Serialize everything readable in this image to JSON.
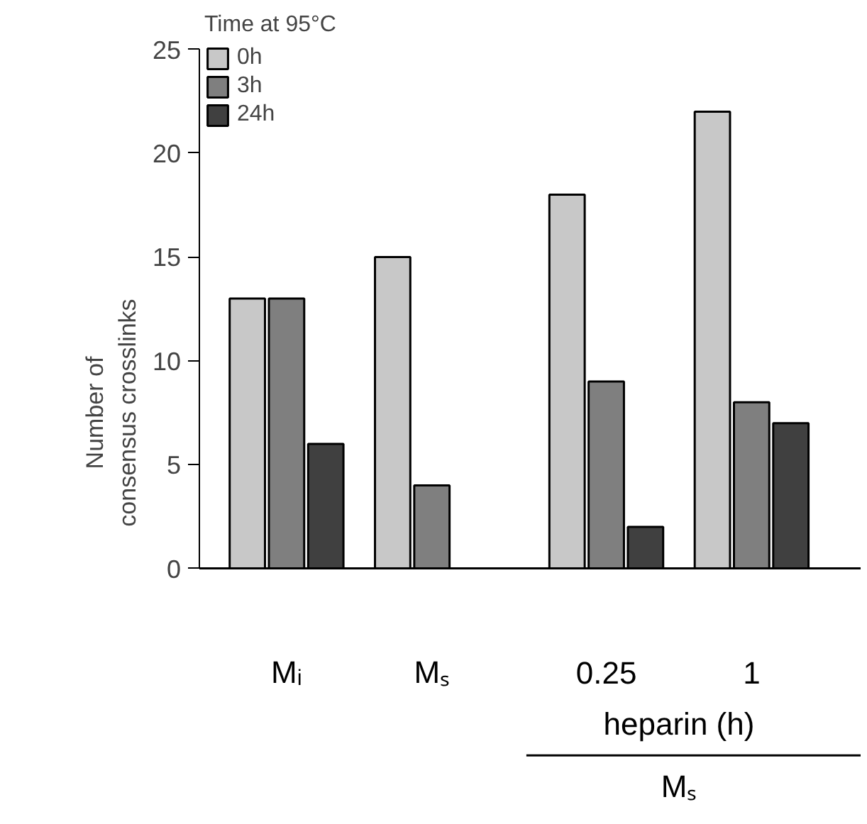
{
  "chart_data": {
    "type": "bar",
    "ylabel": "Number of\nconsensus crosslinks",
    "legend_title": "Time at 95°C",
    "categories": [
      "Mᵢ",
      "Mₛ",
      "0.25",
      "1"
    ],
    "series": [
      {
        "name": "0h",
        "color": "#c8c8c8",
        "values": [
          13,
          15,
          18,
          22
        ]
      },
      {
        "name": "3h",
        "color": "#7f7f7f",
        "values": [
          13,
          4,
          9,
          8
        ]
      },
      {
        "name": "24h",
        "color": "#404040",
        "values": [
          6,
          null,
          2,
          7
        ]
      }
    ],
    "ylim": [
      0,
      25
    ],
    "yticks": [
      0,
      5,
      10,
      15,
      20,
      25
    ],
    "grid": false,
    "legend": "top left",
    "annotations": [
      "heparin (h)",
      "Mₛ"
    ]
  }
}
